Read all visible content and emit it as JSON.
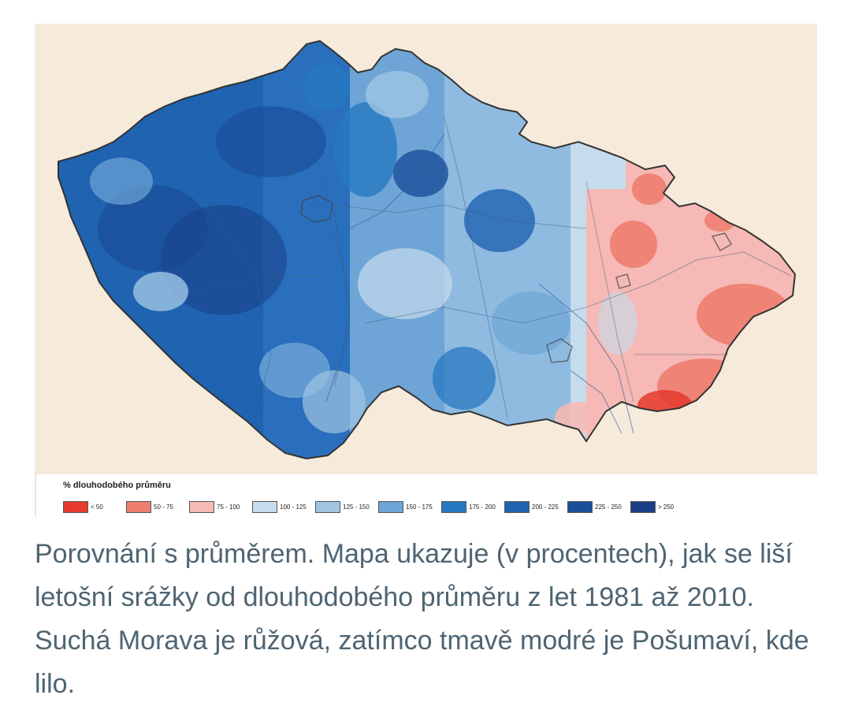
{
  "legend": {
    "title": "% dlouhodobého průměru",
    "items": [
      {
        "label": "< 50",
        "color": "#e53a2e"
      },
      {
        "label": "50 - 75",
        "color": "#ee7d6e"
      },
      {
        "label": "75 - 100",
        "color": "#f6b9b5"
      },
      {
        "label": "100 - 125",
        "color": "#c5dcec"
      },
      {
        "label": "125 - 150",
        "color": "#9fc5e3"
      },
      {
        "label": "150 - 175",
        "color": "#6ea5d6"
      },
      {
        "label": "175 - 200",
        "color": "#2778c2"
      },
      {
        "label": "200 - 225",
        "color": "#1f63b1"
      },
      {
        "label": "225 - 250",
        "color": "#1b4f9a"
      },
      {
        "label": "> 250",
        "color": "#1a3f86"
      }
    ]
  },
  "caption": "Porovnání s průměrem. Mapa ukazuje (v procentech), jak se liší letošní srážky od dlouhodobého průměru z let 1981 až 2010. Suchá Morava je růžová, zatímco tmavě modré je Pošumaví, kde lilo.",
  "colors": {
    "map_background": "#f6eadb",
    "caption_text": "#4e6472"
  }
}
